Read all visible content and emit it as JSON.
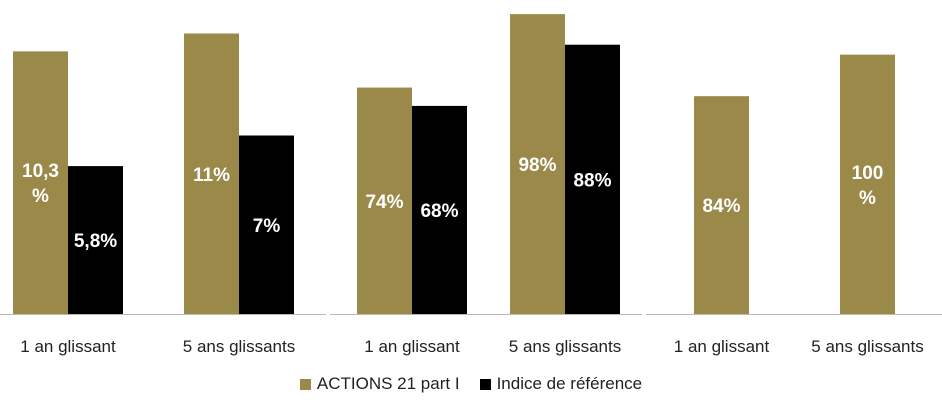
{
  "chart_data": [
    {
      "type": "bar",
      "categories": [
        "1 an glissant",
        "5 ans glissants"
      ],
      "ylim": [
        0,
        12
      ],
      "series": [
        {
          "name": "ACTIONS 21 part I",
          "values": [
            10.3,
            11
          ],
          "labels": [
            "10,3 %",
            "11%"
          ]
        },
        {
          "name": "Indice de référence",
          "values": [
            5.8,
            7
          ],
          "labels": [
            "5,8%",
            "7%"
          ]
        }
      ]
    },
    {
      "type": "bar",
      "categories": [
        "1 an glissant",
        "5 ans glissants"
      ],
      "ylim": [
        0,
        100
      ],
      "series": [
        {
          "name": "ACTIONS 21 part I",
          "values": [
            74,
            98
          ],
          "labels": [
            "74%",
            "98%"
          ]
        },
        {
          "name": "Indice de référence",
          "values": [
            68,
            88
          ],
          "labels": [
            "68%",
            "88%"
          ]
        }
      ]
    },
    {
      "type": "bar",
      "categories": [
        "1 an glissant",
        "5 ans glissants"
      ],
      "ylim": [
        0,
        118
      ],
      "series": [
        {
          "name": "ACTIONS 21 part I",
          "values": [
            84,
            100
          ],
          "labels": [
            "84%",
            "100 %"
          ]
        }
      ]
    }
  ],
  "legend": [
    {
      "label": "ACTIONS 21 part I",
      "color": "#9b8949"
    },
    {
      "label": "Indice de référence",
      "color": "#000000"
    }
  ],
  "colors": {
    "bar_label": "#ffffff",
    "axis": "#b8b8b8",
    "text": "#222222"
  }
}
